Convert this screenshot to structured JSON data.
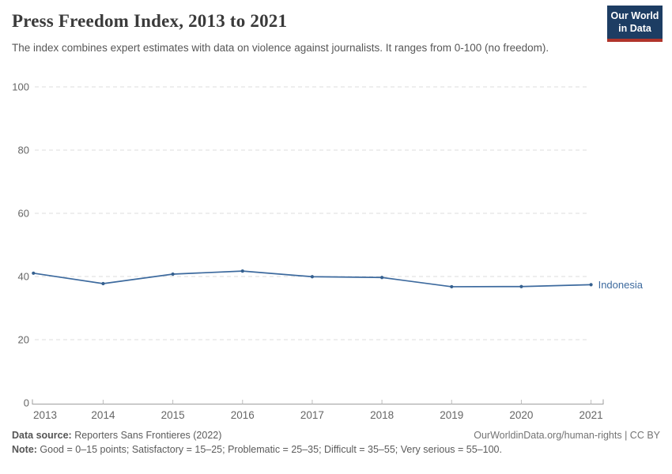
{
  "header": {
    "title": "Press Freedom Index, 2013 to 2021",
    "subtitle": "The index combines expert estimates with data on violence against journalists. It ranges from 0-100 (no freedom).",
    "logo": {
      "line1": "Our World",
      "line2": "in Data"
    }
  },
  "chart_data": {
    "type": "line",
    "title": "Press Freedom Index, 2013 to 2021",
    "xlabel": "",
    "ylabel": "",
    "ylim": [
      0,
      100
    ],
    "yticks": [
      0,
      20,
      40,
      60,
      80,
      100
    ],
    "xticks": [
      2013,
      2014,
      2015,
      2016,
      2017,
      2018,
      2019,
      2020,
      2021
    ],
    "grid": "horizontal-dashed",
    "legend_position": "end-of-line-label",
    "series": [
      {
        "name": "Indonesia",
        "x": [
          2013,
          2014,
          2015,
          2016,
          2017,
          2018,
          2019,
          2020,
          2021
        ],
        "values": [
          41.05,
          37.75,
          40.75,
          41.72,
          39.93,
          39.68,
          36.77,
          36.82,
          37.4
        ]
      }
    ],
    "colors": {
      "line": "#3d6a9e",
      "point": "#35608f",
      "grid": "#dcdcdc",
      "axis": "#9e9e9e",
      "tick": "#bdbdbd",
      "tick_label": "#666666",
      "series_label": "#3d6a9e"
    }
  },
  "footer": {
    "source_label": "Data source:",
    "source_text": " Reporters Sans Frontieres (2022)",
    "attribution": "OurWorldinData.org/human-rights | CC BY",
    "note_label": "Note:",
    "note_text": " Good = 0–15 points; Satisfactory = 15–25; Problematic = 25–35; Difficult = 35–55; Very serious = 55–100."
  }
}
